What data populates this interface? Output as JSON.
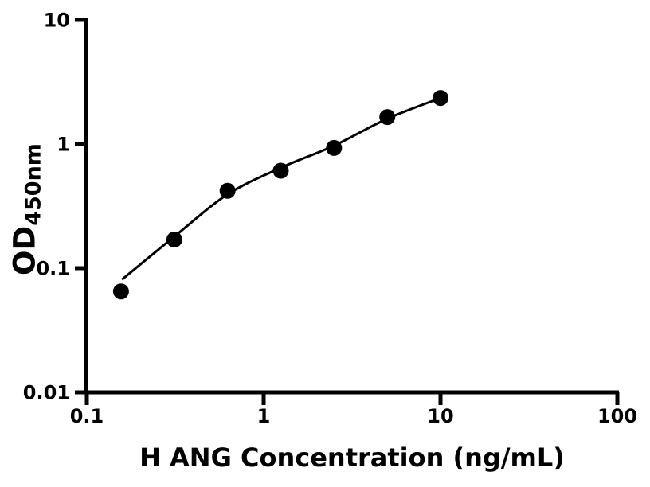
{
  "figure": {
    "background": "#ffffff",
    "ink_color": "#000000",
    "x_axis": {
      "label": "H ANG Concentration (ng/mL)",
      "scale": "log",
      "ticks": [
        0.1,
        1,
        10,
        100
      ],
      "tick_labels": [
        "0.1",
        "1",
        "10",
        "100"
      ]
    },
    "y_axis": {
      "label_main": "OD",
      "label_sub": "450nm",
      "scale": "log",
      "ticks": [
        0.01,
        0.1,
        1,
        10
      ],
      "tick_labels": [
        "0.01",
        "0.1",
        "1",
        "10"
      ]
    }
  },
  "chart_data": {
    "type": "scatter",
    "title": "",
    "xlabel": "H ANG Concentration (ng/mL)",
    "ylabel": "OD450nm",
    "x_scale": "log",
    "y_scale": "log",
    "xlim": [
      0.1,
      100
    ],
    "ylim": [
      0.01,
      10
    ],
    "grid": false,
    "legend": "none",
    "marker_color": "#000000",
    "line_color": "#000000",
    "points": {
      "x": [
        0.156,
        0.3125,
        0.625,
        1.25,
        2.5,
        5,
        10
      ],
      "y": [
        0.065,
        0.17,
        0.42,
        0.61,
        0.93,
        1.65,
        2.35
      ]
    },
    "fit_curve": {
      "x": [
        0.158,
        0.31,
        0.62,
        1.24,
        2.5,
        5.0,
        10
      ],
      "y": [
        0.081,
        0.178,
        0.39,
        0.64,
        0.97,
        1.6,
        2.35
      ]
    }
  }
}
